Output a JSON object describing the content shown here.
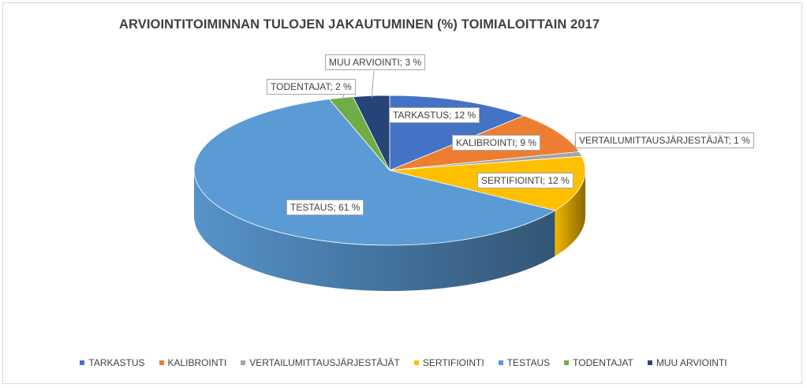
{
  "chart_data": {
    "type": "pie",
    "title": "ARVIOINTITOIMINNAN TULOJEN JAKAUTUMINEN (%) TOIMIALOITTAIN 2017",
    "unit": "%",
    "categories": [
      "TARKASTUS",
      "KALIBROINTI",
      "VERTAILUMITTAUSJÄRJESTÄJÄT",
      "SERTIFIOINTI",
      "TESTAUS",
      "TODENTAJAT",
      "MUU ARVIOINTI"
    ],
    "values": [
      12,
      9,
      1,
      12,
      61,
      2,
      3
    ],
    "colors": [
      "#4472c4",
      "#ed7d31",
      "#a5a5a5",
      "#ffc000",
      "#5b9bd5",
      "#70ad47",
      "#264478"
    ],
    "data_labels": [
      "TARKASTUS; 12 %",
      "KALIBROINTI; 9 %",
      "VERTAILUMITTAUSJÄRJESTÄJÄT; 1 %",
      "SERTIFIOINTI; 12 %",
      "TESTAUS; 61 %",
      "TODENTAJAT; 2 %",
      "MUU ARVIOINTI; 3 %"
    ],
    "legend_position": "bottom",
    "style": "3d"
  }
}
